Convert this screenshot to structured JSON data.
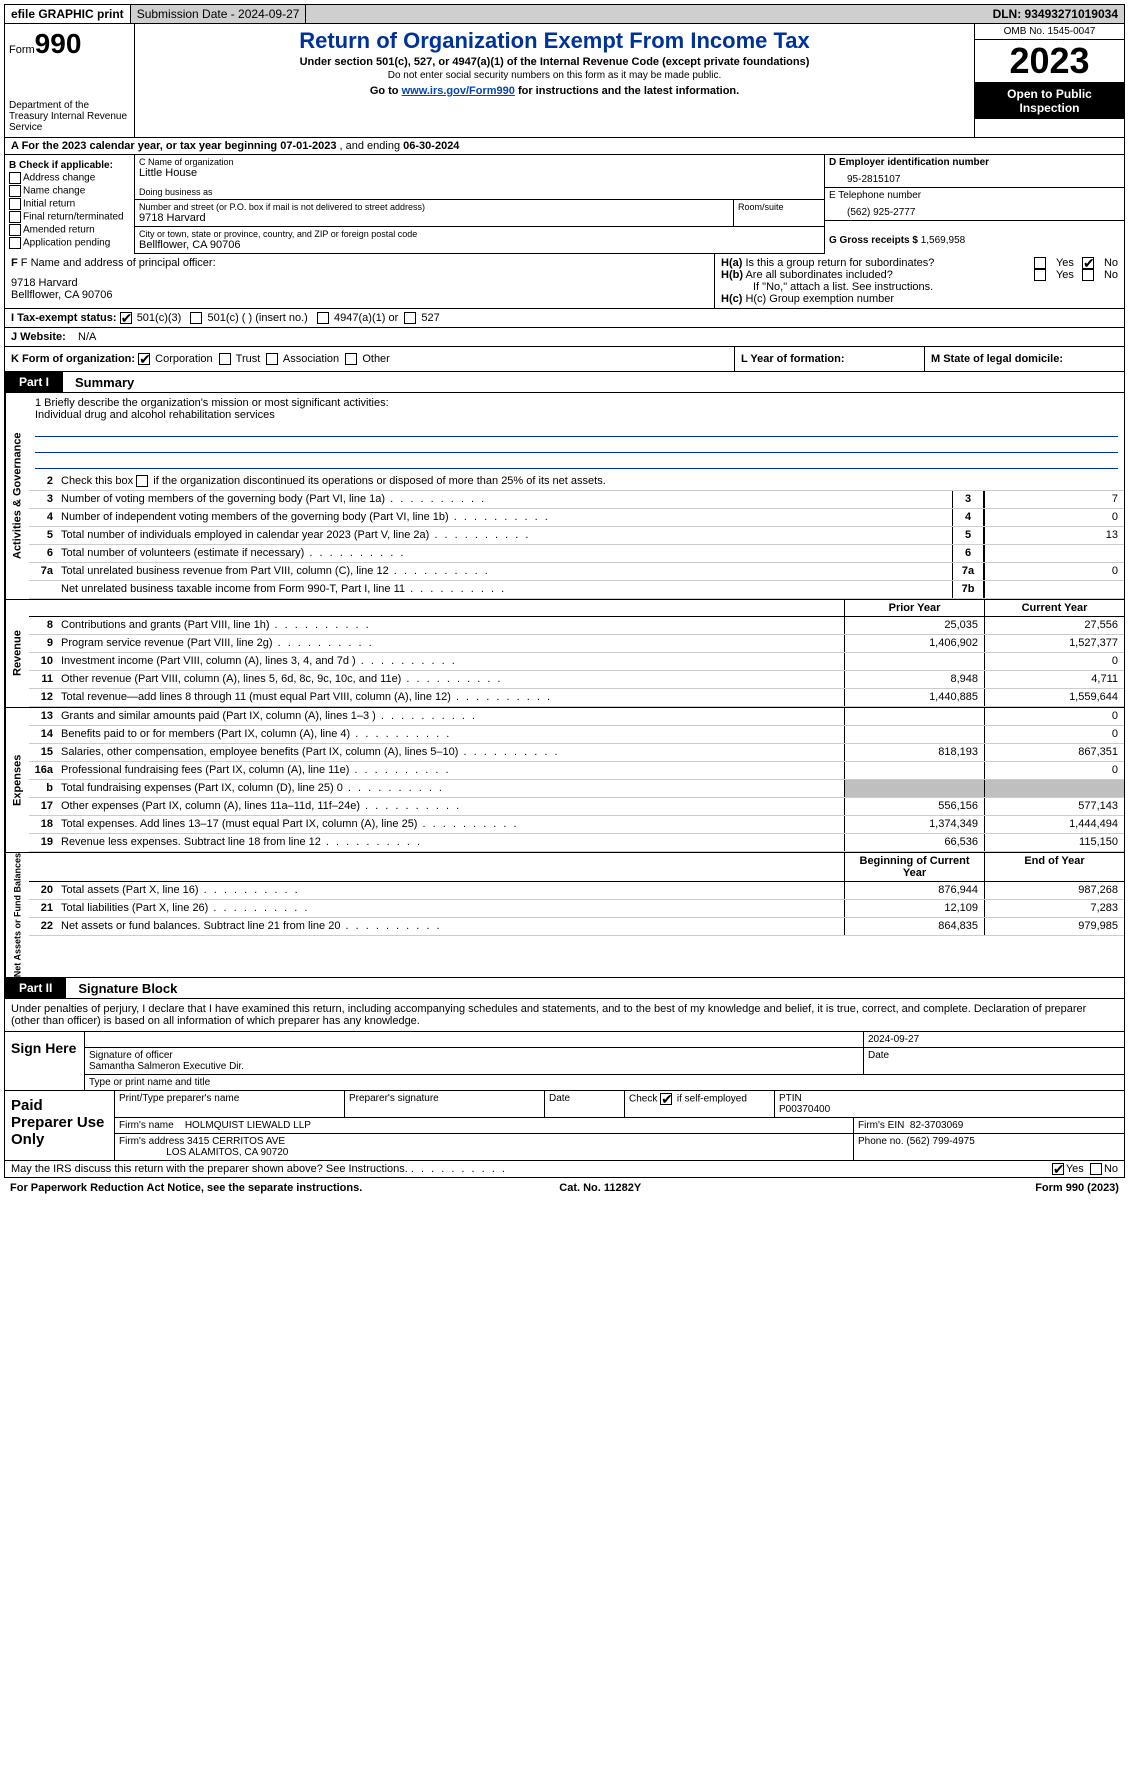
{
  "topbar": {
    "efile": "efile GRAPHIC print",
    "submission": "Submission Date - 2024-09-27",
    "dln": "DLN: 93493271019034"
  },
  "header": {
    "form_word": "Form",
    "form_number": "990",
    "dept": "Department of the Treasury Internal Revenue Service",
    "title": "Return of Organization Exempt From Income Tax",
    "subtitle": "Under section 501(c), 527, or 4947(a)(1) of the Internal Revenue Code (except private foundations)",
    "note1": "Do not enter social security numbers on this form as it may be made public.",
    "goto_prefix": "Go to ",
    "goto_url": "www.irs.gov/Form990",
    "goto_suffix": " for instructions and the latest information.",
    "omb": "OMB No. 1545-0047",
    "year": "2023",
    "open": "Open to Public Inspection"
  },
  "rowA": {
    "prefix": "A For the 2023 calendar year, or tax year beginning ",
    "begin": "07-01-2023",
    "mid": " , and ending ",
    "end": "06-30-2024"
  },
  "colB": {
    "label": "B Check if applicable:",
    "items": [
      "Address change",
      "Name change",
      "Initial return",
      "Final return/terminated",
      "Amended return",
      "Application pending"
    ]
  },
  "colC": {
    "name_label": "C Name of organization",
    "name": "Little House",
    "dba_label": "Doing business as",
    "street_label": "Number and street (or P.O. box if mail is not delivered to street address)",
    "room_label": "Room/suite",
    "street": "9718 Harvard",
    "city_label": "City or town, state or province, country, and ZIP or foreign postal code",
    "city": "Bellflower, CA  90706"
  },
  "colDE": {
    "d_label": "D Employer identification number",
    "d_value": "95-2815107",
    "e_label": "E Telephone number",
    "e_value": "(562) 925-2777",
    "g_label": "G Gross receipts $",
    "g_value": "1,569,958"
  },
  "rowF": {
    "f_label": "F Name and address of principal officer:",
    "f_addr1": "9718 Harvard",
    "f_addr2": "Bellflower, CA  90706"
  },
  "rowH": {
    "ha": "H(a)  Is this a group return for subordinates?",
    "hb": "H(b)  Are all subordinates included?",
    "hb_note": "If \"No,\" attach a list. See instructions.",
    "hc": "H(c)  Group exemption number",
    "yes": "Yes",
    "no": "No"
  },
  "rowI": {
    "label": "I    Tax-exempt status:",
    "opt_501c3": "501(c)(3)",
    "opt_501c": "501(c) (  ) (insert no.)",
    "opt_4947": "4947(a)(1) or",
    "opt_527": "527"
  },
  "rowJ": {
    "label": "J    Website:",
    "value": "N/A"
  },
  "rowK": {
    "label": "K Form of organization:",
    "corp": "Corporation",
    "trust": "Trust",
    "assoc": "Association",
    "other": "Other",
    "l_label": "L Year of formation:",
    "m_label": "M State of legal domicile:"
  },
  "part1": {
    "badge": "Part I",
    "title": "Summary",
    "line1": "1   Briefly describe the organization's mission or most significant activities:",
    "mission": "Individual drug and alcohol rehabilitation services",
    "line2": "2   Check this box       if the organization discontinued its operations or disposed of more than 25% of its net assets.",
    "tabs": {
      "gov": "Activities & Governance",
      "rev": "Revenue",
      "exp": "Expenses",
      "net": "Net Assets or Fund Balances"
    },
    "colhead_prior": "Prior Year",
    "colhead_current": "Current Year",
    "colhead_begin": "Beginning of Current Year",
    "colhead_end": "End of Year",
    "gov_rows": [
      {
        "n": "3",
        "d": "Number of voting members of the governing body (Part VI, line 1a)",
        "box": "3",
        "v": "7"
      },
      {
        "n": "4",
        "d": "Number of independent voting members of the governing body (Part VI, line 1b)",
        "box": "4",
        "v": "0"
      },
      {
        "n": "5",
        "d": "Total number of individuals employed in calendar year 2023 (Part V, line 2a)",
        "box": "5",
        "v": "13"
      },
      {
        "n": "6",
        "d": "Total number of volunteers (estimate if necessary)",
        "box": "6",
        "v": ""
      },
      {
        "n": "7a",
        "d": "Total unrelated business revenue from Part VIII, column (C), line 12",
        "box": "7a",
        "v": "0"
      },
      {
        "n": "",
        "d": "Net unrelated business taxable income from Form 990-T, Part I, line 11",
        "box": "7b",
        "v": ""
      }
    ],
    "rev_rows": [
      {
        "n": "8",
        "d": "Contributions and grants (Part VIII, line 1h)",
        "p": "25,035",
        "c": "27,556"
      },
      {
        "n": "9",
        "d": "Program service revenue (Part VIII, line 2g)",
        "p": "1,406,902",
        "c": "1,527,377"
      },
      {
        "n": "10",
        "d": "Investment income (Part VIII, column (A), lines 3, 4, and 7d )",
        "p": "",
        "c": "0"
      },
      {
        "n": "11",
        "d": "Other revenue (Part VIII, column (A), lines 5, 6d, 8c, 9c, 10c, and 11e)",
        "p": "8,948",
        "c": "4,711"
      },
      {
        "n": "12",
        "d": "Total revenue—add lines 8 through 11 (must equal Part VIII, column (A), line 12)",
        "p": "1,440,885",
        "c": "1,559,644"
      }
    ],
    "exp_rows": [
      {
        "n": "13",
        "d": "Grants and similar amounts paid (Part IX, column (A), lines 1–3 )",
        "p": "",
        "c": "0"
      },
      {
        "n": "14",
        "d": "Benefits paid to or for members (Part IX, column (A), line 4)",
        "p": "",
        "c": "0"
      },
      {
        "n": "15",
        "d": "Salaries, other compensation, employee benefits (Part IX, column (A), lines 5–10)",
        "p": "818,193",
        "c": "867,351"
      },
      {
        "n": "16a",
        "d": "Professional fundraising fees (Part IX, column (A), line 11e)",
        "p": "",
        "c": "0"
      },
      {
        "n": "b",
        "d": "Total fundraising expenses (Part IX, column (D), line 25) 0",
        "p": "GREY",
        "c": "GREY"
      },
      {
        "n": "17",
        "d": "Other expenses (Part IX, column (A), lines 11a–11d, 11f–24e)",
        "p": "556,156",
        "c": "577,143"
      },
      {
        "n": "18",
        "d": "Total expenses. Add lines 13–17 (must equal Part IX, column (A), line 25)",
        "p": "1,374,349",
        "c": "1,444,494"
      },
      {
        "n": "19",
        "d": "Revenue less expenses. Subtract line 18 from line 12",
        "p": "66,536",
        "c": "115,150"
      }
    ],
    "net_rows": [
      {
        "n": "20",
        "d": "Total assets (Part X, line 16)",
        "p": "876,944",
        "c": "987,268"
      },
      {
        "n": "21",
        "d": "Total liabilities (Part X, line 26)",
        "p": "12,109",
        "c": "7,283"
      },
      {
        "n": "22",
        "d": "Net assets or fund balances. Subtract line 21 from line 20",
        "p": "864,835",
        "c": "979,985"
      }
    ]
  },
  "part2": {
    "badge": "Part II",
    "title": "Signature Block",
    "perjury": "Under penalties of perjury, I declare that I have examined this return, including accompanying schedules and statements, and to the best of my knowledge and belief, it is true, correct, and complete. Declaration of preparer (other than officer) is based on all information of which preparer has any knowledge.",
    "sign_here": "Sign Here",
    "sig_date": "2024-09-27",
    "sig_officer_label": "Signature of officer",
    "sig_officer_name": "Samantha Salmeron  Executive Dir.",
    "sig_type_label": "Type or print name and title",
    "date_label": "Date",
    "paid": "Paid Preparer Use Only",
    "prep_name_label": "Print/Type preparer's name",
    "prep_sig_label": "Preparer's signature",
    "prep_date_label": "Date",
    "check_self": "Check        if self-employed",
    "ptin_label": "PTIN",
    "ptin": "P00370400",
    "firm_name_label": "Firm's name",
    "firm_name": "HOLMQUIST LIEWALD LLP",
    "firm_ein_label": "Firm's EIN",
    "firm_ein": "82-3703069",
    "firm_addr_label": "Firm's address",
    "firm_addr1": "3415 CERRITOS AVE",
    "firm_addr2": "LOS ALAMITOS, CA  90720",
    "phone_label": "Phone no.",
    "phone": "(562) 799-4975",
    "discuss": "May the IRS discuss this return with the preparer shown above? See Instructions.",
    "yes": "Yes",
    "no": "No"
  },
  "footer": {
    "paperwork": "For Paperwork Reduction Act Notice, see the separate instructions.",
    "catno": "Cat. No. 11282Y",
    "formno": "Form 990 (2023)"
  }
}
